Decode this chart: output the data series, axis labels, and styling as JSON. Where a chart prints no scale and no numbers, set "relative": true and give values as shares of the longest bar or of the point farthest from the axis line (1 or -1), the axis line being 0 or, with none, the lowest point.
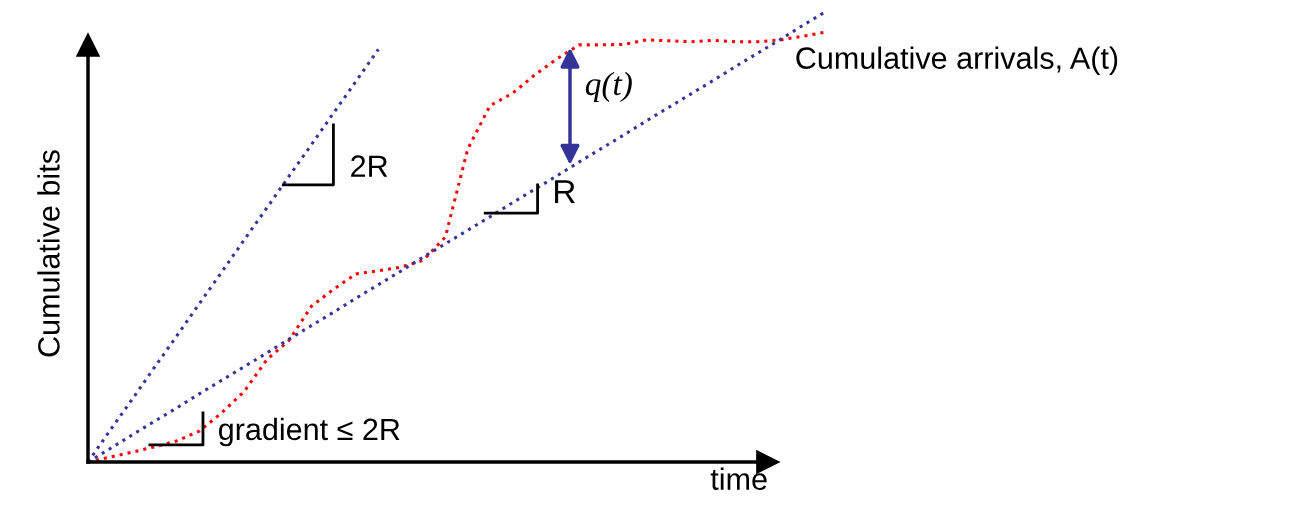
{
  "chart_data": {
    "type": "line",
    "relative": true,
    "xlabel": "time",
    "ylabel": "Cumulative bits",
    "categories": [
      null,
      null,
      null,
      null,
      null,
      null,
      null,
      null,
      null,
      null,
      null,
      null,
      null,
      null,
      null,
      null,
      null,
      null,
      null,
      null,
      null,
      null,
      null,
      null,
      null,
      null,
      null,
      null,
      null,
      null,
      null,
      null,
      null,
      null
    ],
    "series": [
      {
        "color": "#ff0000",
        "line_style": "dotted",
        "values": [
          0,
          0.011,
          0.022,
          0.034,
          0.047,
          0.069,
          0.11,
          0.157,
          0.227,
          0.27,
          0.346,
          0.384,
          0.418,
          0.425,
          0.433,
          0.448,
          0.5,
          0.695,
          0.792,
          0.819,
          0.86,
          0.896,
          0.927,
          0.927,
          0.928,
          0.938,
          0.936,
          0.934,
          0.937,
          0.934,
          0.934,
          0.938,
          0.946,
          0.955
        ]
      },
      {
        "color": "#333399",
        "line_style": "dotted",
        "values": [
          0,
          0.071,
          0.141,
          0.212,
          0.282,
          0.353,
          0.423,
          0.494,
          0.564,
          0.635,
          0.705,
          0.776,
          0.846,
          0.917,
          null,
          null,
          null,
          null,
          null,
          null,
          null,
          null,
          null,
          null,
          null,
          null,
          null,
          null,
          null,
          null,
          null,
          null,
          null,
          null
        ]
      },
      {
        "color": "#333399",
        "line_style": "dotted",
        "values": [
          0,
          0.03,
          0.061,
          0.091,
          0.121,
          0.152,
          0.182,
          0.212,
          0.242,
          0.273,
          0.303,
          0.333,
          0.364,
          0.394,
          0.424,
          0.455,
          0.485,
          0.515,
          0.545,
          0.576,
          0.606,
          0.636,
          0.667,
          0.697,
          0.727,
          0.758,
          0.788,
          0.818,
          0.848,
          0.879,
          0.909,
          0.939,
          0.97,
          1
        ]
      }
    ],
    "annotations": [
      "Cumulative arrivals, A(t)",
      "q(t)",
      "2R",
      "R",
      "gradient ≤ 2R"
    ]
  }
}
